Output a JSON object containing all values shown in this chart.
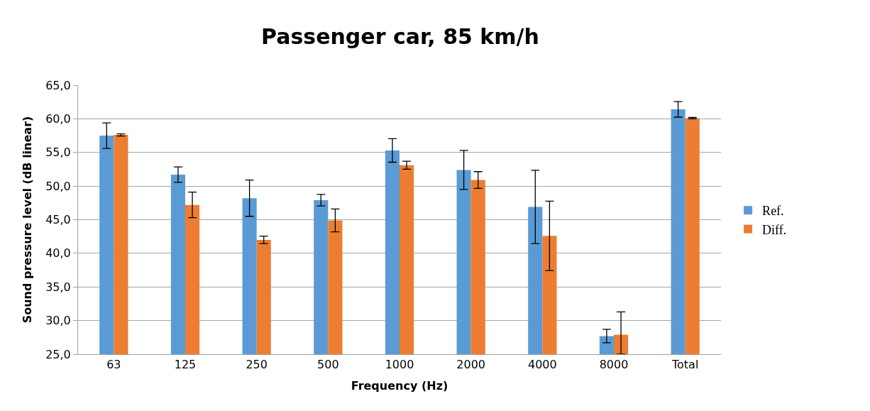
{
  "chart_data": {
    "type": "bar",
    "title": "Passenger car, 85 km/h",
    "xlabel": "Frequency (Hz)",
    "ylabel": "Sound pressure level (dB linear)",
    "categories": [
      "63",
      "125",
      "250",
      "500",
      "1000",
      "2000",
      "4000",
      "8000",
      "Total"
    ],
    "series": [
      {
        "name": "Ref.",
        "color": "#5b9bd5",
        "values": [
          57.5,
          51.7,
          48.2,
          47.9,
          55.3,
          52.4,
          46.9,
          27.7,
          61.4
        ],
        "errors": [
          1.9,
          1.15,
          2.7,
          0.85,
          1.75,
          2.9,
          5.45,
          1.0,
          1.15
        ]
      },
      {
        "name": "Diff.",
        "color": "#ed7d31",
        "values": [
          57.6,
          47.2,
          42.0,
          44.9,
          53.1,
          50.9,
          42.6,
          27.9,
          60.1
        ],
        "errors": [
          0.15,
          1.9,
          0.55,
          1.7,
          0.6,
          1.25,
          5.15,
          [
            25.0,
            31.3
          ],
          0.1
        ]
      }
    ],
    "ylim": [
      25,
      65
    ],
    "yticks": [
      {
        "value": 25,
        "label": "25,0"
      },
      {
        "value": 30,
        "label": "30,0"
      },
      {
        "value": 35,
        "label": "35,0"
      },
      {
        "value": 40,
        "label": "40,0"
      },
      {
        "value": 45,
        "label": "45,0"
      },
      {
        "value": 50,
        "label": "50,0"
      },
      {
        "value": 55,
        "label": "55,0"
      },
      {
        "value": 60,
        "label": "60,0"
      },
      {
        "value": 65,
        "label": "65,0"
      }
    ],
    "grid": "y",
    "legend": "right"
  }
}
